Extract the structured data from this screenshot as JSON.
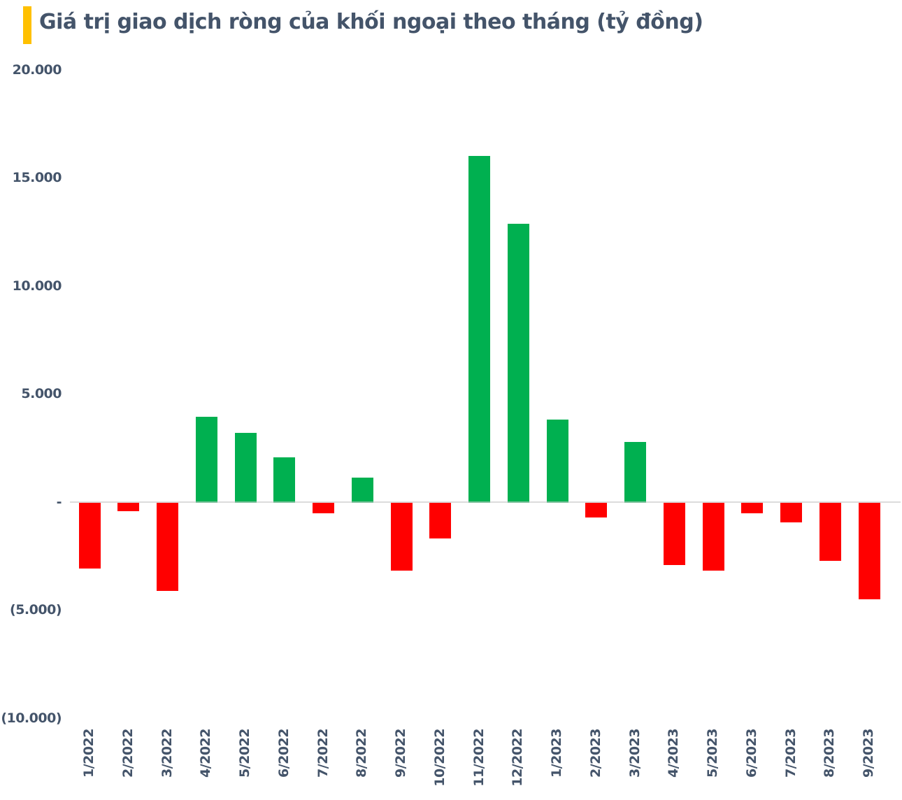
{
  "header": {
    "title": "Giá trị giao dịch ròng của khối ngoại theo tháng (tỷ đồng)",
    "accent_color": "#FFC000",
    "title_color": "#44546A"
  },
  "chart_data": {
    "type": "bar",
    "title": "Giá trị giao dịch ròng của khối ngoại theo tháng (tỷ đồng)",
    "unit": "tỷ đồng",
    "categories": [
      "1/2022",
      "2/2022",
      "3/2022",
      "4/2022",
      "5/2022",
      "6/2022",
      "7/2022",
      "8/2022",
      "9/2022",
      "10/2022",
      "11/2022",
      "12/2022",
      "1/2023",
      "2/2023",
      "3/2023",
      "4/2023",
      "5/2023",
      "6/2023",
      "7/2023",
      "8/2023",
      "9/2023"
    ],
    "values": [
      -3040,
      -400,
      -4090,
      3930,
      3180,
      2060,
      -500,
      1110,
      -3150,
      -1650,
      16000,
      12850,
      3800,
      -680,
      2760,
      -2870,
      -3150,
      -500,
      -890,
      -2670,
      -4480
    ],
    "ylim": [
      -10000,
      20000
    ],
    "y_tick_values": [
      20000,
      15000,
      10000,
      5000,
      0,
      -5000,
      -10000
    ],
    "y_tick_labels": [
      "20.000",
      "15.000",
      "10.000",
      "5.000",
      "-",
      "(5.000)",
      "(10.000)"
    ],
    "positive_color": "#00B050",
    "negative_color": "#FF0000",
    "axis_text_color": "#44546A",
    "zero_line_color": "#D9D9D9",
    "grid": false,
    "legend": false
  }
}
